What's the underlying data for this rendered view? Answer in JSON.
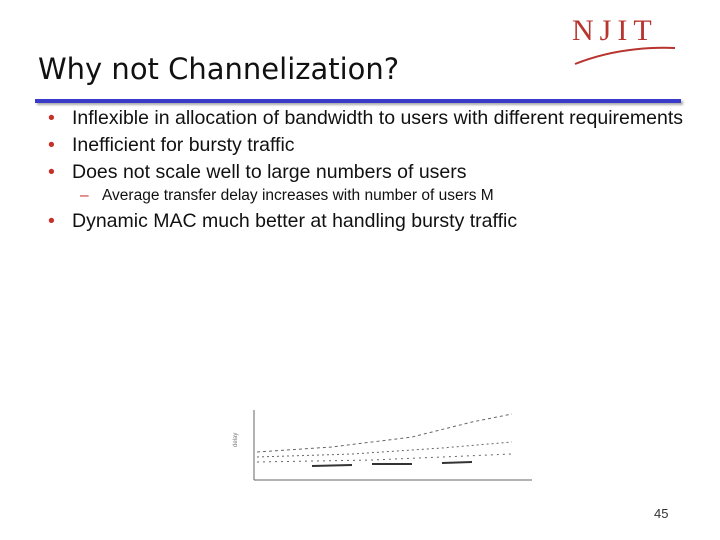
{
  "header": {
    "title": "Why not Channelization?",
    "logo": "NJIT"
  },
  "bullets": [
    {
      "text": "Inflexible in allocation of bandwidth to users with different requirements"
    },
    {
      "text": "Inefficient for bursty traffic"
    },
    {
      "text": "Does not scale well to large numbers of users",
      "sub": [
        "Average transfer delay increases with number of users M"
      ]
    },
    {
      "text": "Dynamic MAC much better at handling bursty traffic"
    }
  ],
  "footer": {
    "page": "45"
  }
}
